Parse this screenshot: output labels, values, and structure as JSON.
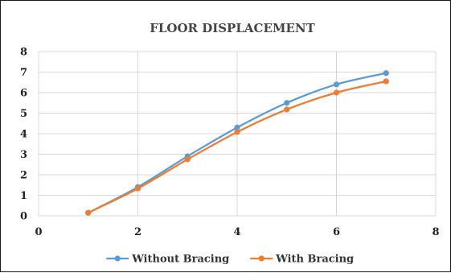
{
  "chart_data": {
    "type": "scatter",
    "title": "FLOOR DISPLACEMENT",
    "xlabel": "",
    "ylabel": "",
    "xlim": [
      0,
      8
    ],
    "ylim": [
      0,
      8
    ],
    "xticks": [
      0,
      2,
      4,
      6,
      8
    ],
    "yticks": [
      0,
      1,
      2,
      3,
      4,
      5,
      6,
      7,
      8
    ],
    "grid": true,
    "smooth_lines": true,
    "legend_position": "bottom",
    "series": [
      {
        "name": "Without Bracing",
        "color": "#5B9BD5",
        "x": [
          1,
          2,
          3,
          4,
          5,
          6,
          7
        ],
        "y": [
          0.15,
          1.4,
          2.9,
          4.3,
          5.5,
          6.4,
          6.95
        ]
      },
      {
        "name": "With Bracing",
        "color": "#ED7D31",
        "x": [
          1,
          2,
          3,
          4,
          5,
          6,
          7
        ],
        "y": [
          0.15,
          1.33,
          2.75,
          4.08,
          5.18,
          6.0,
          6.55
        ]
      }
    ]
  }
}
